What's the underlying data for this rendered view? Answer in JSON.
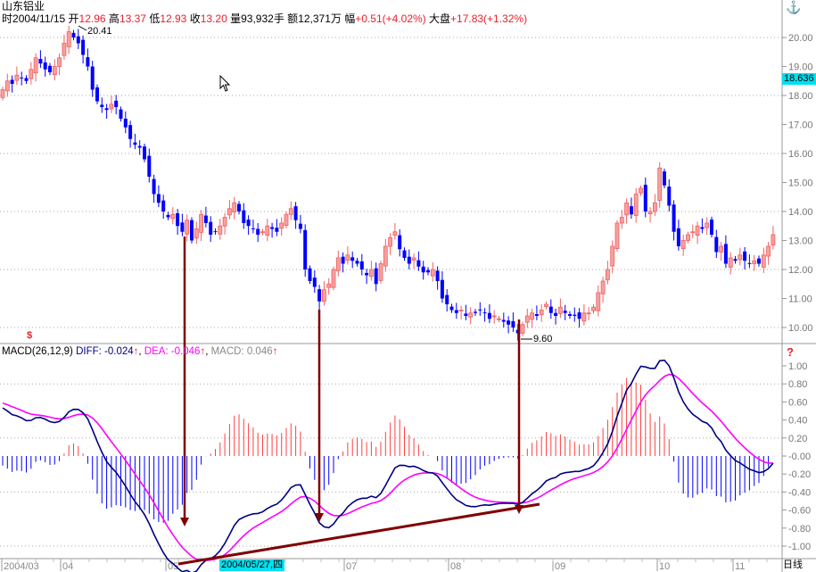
{
  "header": {
    "stock_name": "山东铝业",
    "date_label": "时",
    "date": "2004/11/15",
    "open_label": "开",
    "open": "12.96",
    "high_label": "高",
    "high": "13.37",
    "low_label": "低",
    "low": "12.93",
    "close_label": "收",
    "close": "13.20",
    "volume_label": "量",
    "volume": "93,932手",
    "amount_label": "额",
    "amount": "12,371万",
    "change_label": "幅",
    "change": "+0.51(+4.02%)",
    "index_label": "大盘",
    "index_change": "+17.83(+1.32%)"
  },
  "macd_header": {
    "title": "MACD(26,12,9)",
    "diff": "DIFF: -0.024",
    "dea": "DEA: -0.046",
    "macd": "MACD: 0.046",
    "arrow": "↑"
  },
  "annotations": {
    "high_marker": "20.41",
    "low_marker": "9.60",
    "current_price": "18.636",
    "cursor_date": "2004/05/27,四",
    "period": "日线"
  },
  "icons": {
    "top_right": "anchor-icon",
    "macd_right": "question-icon",
    "price_bottom_left": "money-icon"
  },
  "colors": {
    "up": "#f06060",
    "down": "#0000ff",
    "diff": "#000080",
    "dea": "#ff00ff",
    "arrow": "#800000",
    "highlight": "#00e0f0"
  },
  "chart_data": [
    {
      "type": "candlestick",
      "title": "山东铝业 日线",
      "ylim": [
        9.5,
        20.8
      ],
      "y_ticks": [
        "20.00",
        "19.00",
        "18.00",
        "17.00",
        "16.00",
        "15.00",
        "14.00",
        "13.00",
        "12.00",
        "11.00",
        "10.00"
      ],
      "x_ticks": [
        "2004/03",
        "04",
        "05",
        "07",
        "08",
        "09",
        "10",
        "11"
      ],
      "closes": [
        18.2,
        18.5,
        18.4,
        18.7,
        18.6,
        18.5,
        18.9,
        19.3,
        19.1,
        18.9,
        18.8,
        19.0,
        19.3,
        19.8,
        20.2,
        20.0,
        19.8,
        19.4,
        19.0,
        18.2,
        17.8,
        17.6,
        17.5,
        17.7,
        17.6,
        17.2,
        16.9,
        16.5,
        16.3,
        16.2,
        15.8,
        15.2,
        14.6,
        14.3,
        14.0,
        13.8,
        13.9,
        13.5,
        13.3,
        13.7,
        13.0,
        13.4,
        13.9,
        13.6,
        13.2,
        13.3,
        13.5,
        13.8,
        14.1,
        14.3,
        14.0,
        13.6,
        13.5,
        13.4,
        13.2,
        13.3,
        13.5,
        13.4,
        13.3,
        13.6,
        13.9,
        14.1,
        13.7,
        13.4,
        12.0,
        11.6,
        11.4,
        10.9,
        11.3,
        11.5,
        12.0,
        12.4,
        12.2,
        12.5,
        12.3,
        12.2,
        12.0,
        11.8,
        12.0,
        11.5,
        12.2,
        12.8,
        13.1,
        13.3,
        12.7,
        12.4,
        12.2,
        12.4,
        12.1,
        11.9,
        11.9,
        12.0,
        11.6,
        11.0,
        10.8,
        10.6,
        10.5,
        10.6,
        10.4,
        10.5,
        10.5,
        10.6,
        10.5,
        10.3,
        10.4,
        10.3,
        10.2,
        10.1,
        10.0,
        9.8,
        10.1,
        10.4,
        10.5,
        10.4,
        10.6,
        10.8,
        10.5,
        10.4,
        10.7,
        10.5,
        10.4,
        10.4,
        10.3,
        10.5,
        10.5,
        10.7,
        11.2,
        11.6,
        12.0,
        12.8,
        13.6,
        13.8,
        14.3,
        13.9,
        14.6,
        14.8,
        14.0,
        14.0,
        14.3,
        15.5,
        14.9,
        14.2,
        13.3,
        12.8,
        13.0,
        13.2,
        13.3,
        13.5,
        13.4,
        13.6,
        13.2,
        12.6,
        12.8,
        12.2,
        12.4,
        12.3,
        12.5,
        12.3,
        12.2,
        12.3,
        12.2,
        12.5,
        12.8,
        13.2
      ]
    },
    {
      "type": "macd",
      "params": [
        26,
        12,
        9
      ],
      "ylim": [
        -1.1,
        1.1
      ],
      "y_ticks": [
        "1.00",
        "0.80",
        "0.60",
        "0.40",
        "0.20",
        "-0.00",
        "-0.20",
        "-0.40",
        "-0.60",
        "-0.80",
        "-1.00"
      ],
      "seed": {
        "diff": 0.6,
        "dea": 0.6
      }
    }
  ]
}
